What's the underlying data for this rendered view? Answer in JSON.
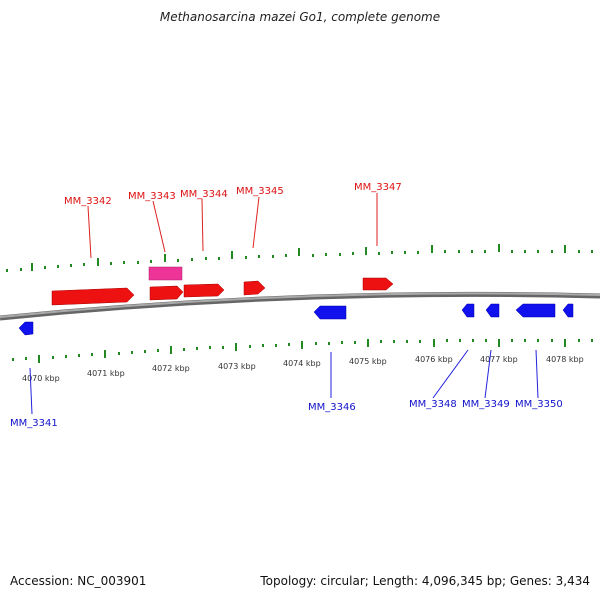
{
  "title": "Methanosarcina mazei Go1, complete genome",
  "footer": {
    "accession": "Accession: NC_003901",
    "summary": "Topology: circular; Length: 4,096,345 bp; Genes: 3,434"
  },
  "colors": {
    "forward_gene": "#ee1111",
    "highlight_gene": "#ee3399",
    "reverse_gene": "#1111ee",
    "ticks": "#228822",
    "backbone": "#888888"
  },
  "scale": {
    "kbp_labels": [
      "4070 kbp",
      "4071 kbp",
      "4072 kbp",
      "4073 kbp",
      "4074 kbp",
      "4075 kbp",
      "4076 kbp",
      "4077 kbp",
      "4078 kbp"
    ]
  },
  "genes_forward": [
    "MM_3342",
    "MM_3343",
    "MM_3344",
    "MM_3345",
    "MM_3347"
  ],
  "genes_reverse": [
    "MM_3341",
    "MM_3346",
    "MM_3348",
    "MM_3349",
    "MM_3350"
  ]
}
